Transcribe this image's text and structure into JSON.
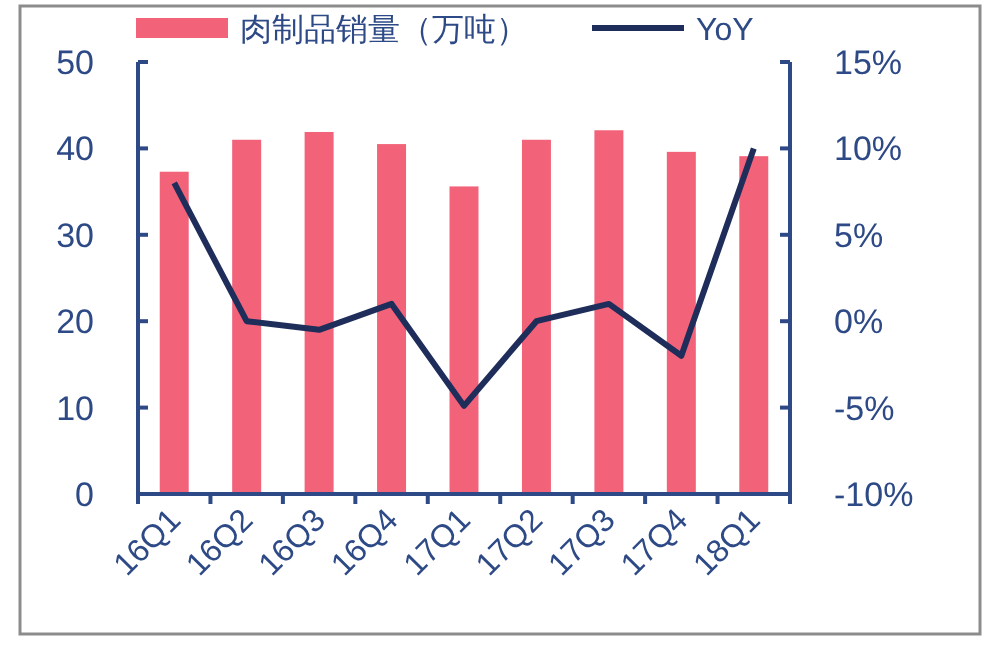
{
  "chart_data": {
    "type": "bar",
    "categories": [
      "16Q1",
      "16Q2",
      "16Q3",
      "16Q4",
      "17Q1",
      "17Q2",
      "17Q3",
      "17Q4",
      "18Q1"
    ],
    "series": [
      {
        "name": "肉制品销量（万吨）",
        "color": "#f2637a",
        "values": [
          37.3,
          41.0,
          41.9,
          40.5,
          35.6,
          41.0,
          42.1,
          39.6,
          39.1
        ]
      },
      {
        "name": "YoY",
        "type": "line",
        "axis": "y2",
        "color": "#1f2d5a",
        "values": [
          8,
          0,
          -0.5,
          1,
          -4.9,
          0,
          1,
          -2,
          10
        ]
      }
    ],
    "ylim": [
      0,
      50
    ],
    "yticks": [
      0,
      10,
      20,
      30,
      40,
      50
    ],
    "y2lim": [
      -10,
      15
    ],
    "y2ticks": [
      {
        "value": -10,
        "label": "-10%"
      },
      {
        "value": -5,
        "label": "-5%"
      },
      {
        "value": 0,
        "label": "0%"
      },
      {
        "value": 5,
        "label": "5%"
      },
      {
        "value": 10,
        "label": "10%"
      },
      {
        "value": 15,
        "label": "15%"
      }
    ],
    "legend": "top",
    "grid": false
  }
}
